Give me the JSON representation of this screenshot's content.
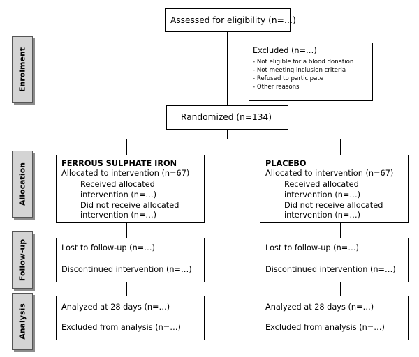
{
  "phases": {
    "enrollment": "Enrolment",
    "allocation": "Allocation",
    "follow_up": "Follow-up",
    "analysis": "Analysis"
  },
  "assessed": "Assessed for eligibility (n=…)",
  "excluded": {
    "title": "Excluded (n=…)",
    "reasons": [
      "- Not eligible for a blood donation",
      "- Not meeting inclusion criteria",
      "- Refused to participate",
      "- Other reasons"
    ]
  },
  "randomized": "Randomized (n=134)",
  "arms": [
    {
      "name": "FERROUS SULPHATE IRON",
      "allocated": "Allocated to intervention (n=67)",
      "received": [
        "Received allocated",
        "intervention (n=…)"
      ],
      "not_received": [
        "Did not receive allocated",
        "intervention (n=…)"
      ],
      "lost": "Lost to follow-up (n=…)",
      "discontinued": "Discontinued intervention (n=…)",
      "analyzed": "Analyzed at 28 days (n=…)",
      "excluded_analysis": "Excluded from analysis (n=…)"
    },
    {
      "name": "PLACEBO",
      "allocated": "Allocated to intervention (n=67)",
      "received": [
        "Received allocated",
        "intervention (n=…)"
      ],
      "not_received": [
        "Did not receive allocated",
        "intervention (n=…)"
      ],
      "lost": "Lost to follow-up (n=…)",
      "discontinued": "Discontinued intervention (n=…)",
      "analyzed": "Analyzed at 28 days (n=…)",
      "excluded_analysis": "Excluded from analysis (n=…)"
    }
  ]
}
